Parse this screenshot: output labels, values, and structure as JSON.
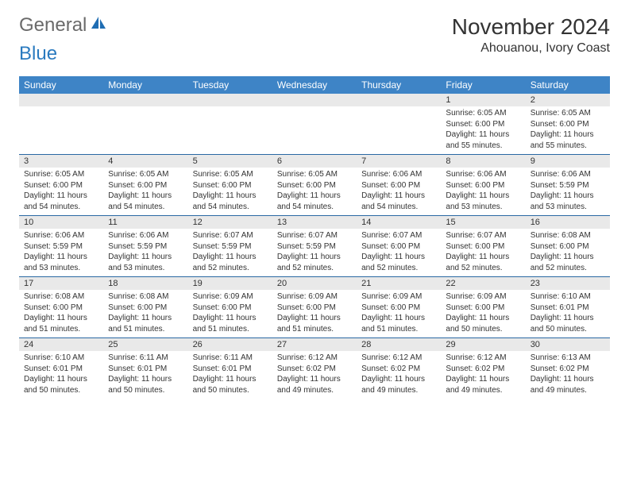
{
  "logo": {
    "text1": "General",
    "text2": "Blue"
  },
  "header": {
    "month": "November 2024",
    "location": "Ahouanou, Ivory Coast"
  },
  "colors": {
    "header_bg": "#3e84c6",
    "num_bg": "#e9e9e9",
    "row_border": "#2a68a3"
  },
  "dow": [
    "Sunday",
    "Monday",
    "Tuesday",
    "Wednesday",
    "Thursday",
    "Friday",
    "Saturday"
  ],
  "weeks": [
    {
      "nums": [
        "",
        "",
        "",
        "",
        "",
        "1",
        "2"
      ],
      "cells": [
        {
          "sr": "",
          "ss": "",
          "d1": "",
          "d2": ""
        },
        {
          "sr": "",
          "ss": "",
          "d1": "",
          "d2": ""
        },
        {
          "sr": "",
          "ss": "",
          "d1": "",
          "d2": ""
        },
        {
          "sr": "",
          "ss": "",
          "d1": "",
          "d2": ""
        },
        {
          "sr": "",
          "ss": "",
          "d1": "",
          "d2": ""
        },
        {
          "sr": "Sunrise: 6:05 AM",
          "ss": "Sunset: 6:00 PM",
          "d1": "Daylight: 11 hours",
          "d2": "and 55 minutes."
        },
        {
          "sr": "Sunrise: 6:05 AM",
          "ss": "Sunset: 6:00 PM",
          "d1": "Daylight: 11 hours",
          "d2": "and 55 minutes."
        }
      ]
    },
    {
      "nums": [
        "3",
        "4",
        "5",
        "6",
        "7",
        "8",
        "9"
      ],
      "cells": [
        {
          "sr": "Sunrise: 6:05 AM",
          "ss": "Sunset: 6:00 PM",
          "d1": "Daylight: 11 hours",
          "d2": "and 54 minutes."
        },
        {
          "sr": "Sunrise: 6:05 AM",
          "ss": "Sunset: 6:00 PM",
          "d1": "Daylight: 11 hours",
          "d2": "and 54 minutes."
        },
        {
          "sr": "Sunrise: 6:05 AM",
          "ss": "Sunset: 6:00 PM",
          "d1": "Daylight: 11 hours",
          "d2": "and 54 minutes."
        },
        {
          "sr": "Sunrise: 6:05 AM",
          "ss": "Sunset: 6:00 PM",
          "d1": "Daylight: 11 hours",
          "d2": "and 54 minutes."
        },
        {
          "sr": "Sunrise: 6:06 AM",
          "ss": "Sunset: 6:00 PM",
          "d1": "Daylight: 11 hours",
          "d2": "and 54 minutes."
        },
        {
          "sr": "Sunrise: 6:06 AM",
          "ss": "Sunset: 6:00 PM",
          "d1": "Daylight: 11 hours",
          "d2": "and 53 minutes."
        },
        {
          "sr": "Sunrise: 6:06 AM",
          "ss": "Sunset: 5:59 PM",
          "d1": "Daylight: 11 hours",
          "d2": "and 53 minutes."
        }
      ]
    },
    {
      "nums": [
        "10",
        "11",
        "12",
        "13",
        "14",
        "15",
        "16"
      ],
      "cells": [
        {
          "sr": "Sunrise: 6:06 AM",
          "ss": "Sunset: 5:59 PM",
          "d1": "Daylight: 11 hours",
          "d2": "and 53 minutes."
        },
        {
          "sr": "Sunrise: 6:06 AM",
          "ss": "Sunset: 5:59 PM",
          "d1": "Daylight: 11 hours",
          "d2": "and 53 minutes."
        },
        {
          "sr": "Sunrise: 6:07 AM",
          "ss": "Sunset: 5:59 PM",
          "d1": "Daylight: 11 hours",
          "d2": "and 52 minutes."
        },
        {
          "sr": "Sunrise: 6:07 AM",
          "ss": "Sunset: 5:59 PM",
          "d1": "Daylight: 11 hours",
          "d2": "and 52 minutes."
        },
        {
          "sr": "Sunrise: 6:07 AM",
          "ss": "Sunset: 6:00 PM",
          "d1": "Daylight: 11 hours",
          "d2": "and 52 minutes."
        },
        {
          "sr": "Sunrise: 6:07 AM",
          "ss": "Sunset: 6:00 PM",
          "d1": "Daylight: 11 hours",
          "d2": "and 52 minutes."
        },
        {
          "sr": "Sunrise: 6:08 AM",
          "ss": "Sunset: 6:00 PM",
          "d1": "Daylight: 11 hours",
          "d2": "and 52 minutes."
        }
      ]
    },
    {
      "nums": [
        "17",
        "18",
        "19",
        "20",
        "21",
        "22",
        "23"
      ],
      "cells": [
        {
          "sr": "Sunrise: 6:08 AM",
          "ss": "Sunset: 6:00 PM",
          "d1": "Daylight: 11 hours",
          "d2": "and 51 minutes."
        },
        {
          "sr": "Sunrise: 6:08 AM",
          "ss": "Sunset: 6:00 PM",
          "d1": "Daylight: 11 hours",
          "d2": "and 51 minutes."
        },
        {
          "sr": "Sunrise: 6:09 AM",
          "ss": "Sunset: 6:00 PM",
          "d1": "Daylight: 11 hours",
          "d2": "and 51 minutes."
        },
        {
          "sr": "Sunrise: 6:09 AM",
          "ss": "Sunset: 6:00 PM",
          "d1": "Daylight: 11 hours",
          "d2": "and 51 minutes."
        },
        {
          "sr": "Sunrise: 6:09 AM",
          "ss": "Sunset: 6:00 PM",
          "d1": "Daylight: 11 hours",
          "d2": "and 51 minutes."
        },
        {
          "sr": "Sunrise: 6:09 AM",
          "ss": "Sunset: 6:00 PM",
          "d1": "Daylight: 11 hours",
          "d2": "and 50 minutes."
        },
        {
          "sr": "Sunrise: 6:10 AM",
          "ss": "Sunset: 6:01 PM",
          "d1": "Daylight: 11 hours",
          "d2": "and 50 minutes."
        }
      ]
    },
    {
      "nums": [
        "24",
        "25",
        "26",
        "27",
        "28",
        "29",
        "30"
      ],
      "cells": [
        {
          "sr": "Sunrise: 6:10 AM",
          "ss": "Sunset: 6:01 PM",
          "d1": "Daylight: 11 hours",
          "d2": "and 50 minutes."
        },
        {
          "sr": "Sunrise: 6:11 AM",
          "ss": "Sunset: 6:01 PM",
          "d1": "Daylight: 11 hours",
          "d2": "and 50 minutes."
        },
        {
          "sr": "Sunrise: 6:11 AM",
          "ss": "Sunset: 6:01 PM",
          "d1": "Daylight: 11 hours",
          "d2": "and 50 minutes."
        },
        {
          "sr": "Sunrise: 6:12 AM",
          "ss": "Sunset: 6:02 PM",
          "d1": "Daylight: 11 hours",
          "d2": "and 49 minutes."
        },
        {
          "sr": "Sunrise: 6:12 AM",
          "ss": "Sunset: 6:02 PM",
          "d1": "Daylight: 11 hours",
          "d2": "and 49 minutes."
        },
        {
          "sr": "Sunrise: 6:12 AM",
          "ss": "Sunset: 6:02 PM",
          "d1": "Daylight: 11 hours",
          "d2": "and 49 minutes."
        },
        {
          "sr": "Sunrise: 6:13 AM",
          "ss": "Sunset: 6:02 PM",
          "d1": "Daylight: 11 hours",
          "d2": "and 49 minutes."
        }
      ]
    }
  ]
}
